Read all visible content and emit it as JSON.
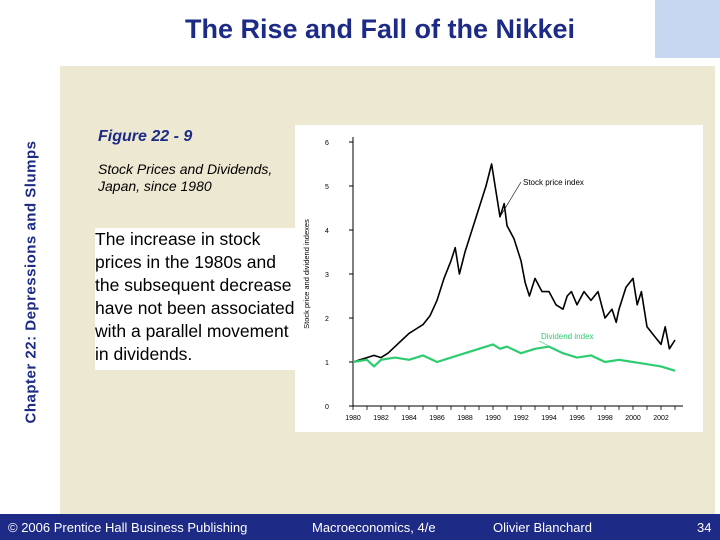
{
  "slide": {
    "title": "The Rise and Fall of the Nikkei",
    "side_label": "Chapter 22: Depressions and Slumps",
    "figure_number": "Figure 22 - 9",
    "figure_caption": "Stock Prices and Dividends, Japan, since 1980",
    "description": "The increase in stock prices in the 1980s and the subsequent decrease have not been associated with a parallel movement in dividends."
  },
  "footer": {
    "copyright": "© 2006 Prentice Hall Business Publishing",
    "book": "Macroeconomics, 4/e",
    "author": "Olivier Blanchard",
    "page": "34"
  },
  "chart_data": {
    "type": "line",
    "ylabel": "Stock price and dividend indexes",
    "xlabel": "",
    "ylim": [
      0,
      6
    ],
    "xlim": [
      1980,
      2003
    ],
    "yticks": [
      0,
      1,
      2,
      3,
      4,
      5,
      6
    ],
    "xticks": [
      1980,
      1982,
      1984,
      1986,
      1988,
      1990,
      1992,
      1994,
      1996,
      1998,
      2000,
      2002
    ],
    "grid": false,
    "series": [
      {
        "name": "Stock price index",
        "color": "#000000",
        "x": [
          1980,
          1980.5,
          1981,
          1981.5,
          1982,
          1982.5,
          1983,
          1983.5,
          1984,
          1984.5,
          1985,
          1985.5,
          1986,
          1986.5,
          1987,
          1987.3,
          1987.6,
          1988,
          1988.5,
          1989,
          1989.5,
          1989.9,
          1990.2,
          1990.5,
          1990.8,
          1991,
          1991.5,
          1992,
          1992.3,
          1992.6,
          1993,
          1993.5,
          1994,
          1994.5,
          1995,
          1995.3,
          1995.6,
          1996,
          1996.5,
          1997,
          1997.5,
          1998,
          1998.5,
          1998.8,
          1999,
          1999.5,
          2000,
          2000.3,
          2000.6,
          2001,
          2001.5,
          2002,
          2002.3,
          2002.6,
          2003
        ],
        "values": [
          1.0,
          1.05,
          1.1,
          1.15,
          1.1,
          1.2,
          1.35,
          1.5,
          1.65,
          1.75,
          1.85,
          2.05,
          2.4,
          2.9,
          3.3,
          3.6,
          3.0,
          3.5,
          4.0,
          4.5,
          5.0,
          5.5,
          4.9,
          4.3,
          4.6,
          4.1,
          3.8,
          3.3,
          2.8,
          2.5,
          2.9,
          2.6,
          2.6,
          2.3,
          2.2,
          2.5,
          2.6,
          2.3,
          2.6,
          2.4,
          2.6,
          2.0,
          2.2,
          1.9,
          2.2,
          2.7,
          2.9,
          2.3,
          2.6,
          1.8,
          1.6,
          1.4,
          1.8,
          1.3,
          1.5
        ]
      },
      {
        "name": "Dividend index",
        "color": "#2ecc71",
        "x": [
          1980,
          1981,
          1981.5,
          1982,
          1983,
          1984,
          1985,
          1986,
          1987,
          1988,
          1989,
          1990,
          1990.5,
          1991,
          1992,
          1993,
          1994,
          1995,
          1996,
          1997,
          1998,
          1999,
          2000,
          2001,
          2002,
          2002.5,
          2003
        ],
        "values": [
          1.0,
          1.05,
          0.9,
          1.05,
          1.1,
          1.05,
          1.15,
          1.0,
          1.1,
          1.2,
          1.3,
          1.4,
          1.3,
          1.35,
          1.2,
          1.3,
          1.35,
          1.2,
          1.1,
          1.15,
          1.0,
          1.05,
          1.0,
          0.95,
          0.9,
          0.85,
          0.8
        ]
      }
    ],
    "annotations": [
      {
        "text": "Stock price index",
        "series": 0
      },
      {
        "text": "Dividend index",
        "series": 1
      }
    ]
  }
}
